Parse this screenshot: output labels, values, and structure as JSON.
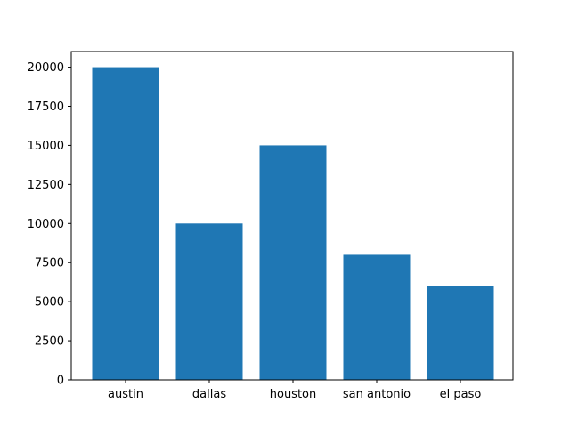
{
  "chart_data": {
    "type": "bar",
    "title": "",
    "xlabel": "",
    "ylabel": "",
    "categories": [
      "austin",
      "dallas",
      "houston",
      "san antonio",
      "el paso"
    ],
    "values": [
      20000,
      10000,
      15000,
      8000,
      6000
    ],
    "ylim": [
      0,
      21000
    ],
    "yticks": [
      0,
      2500,
      5000,
      7500,
      10000,
      12500,
      15000,
      17500,
      20000
    ],
    "grid": false,
    "legend": "none",
    "colors": {
      "bar": "#1f77b4",
      "axis": "#000000",
      "background": "#ffffff"
    }
  }
}
